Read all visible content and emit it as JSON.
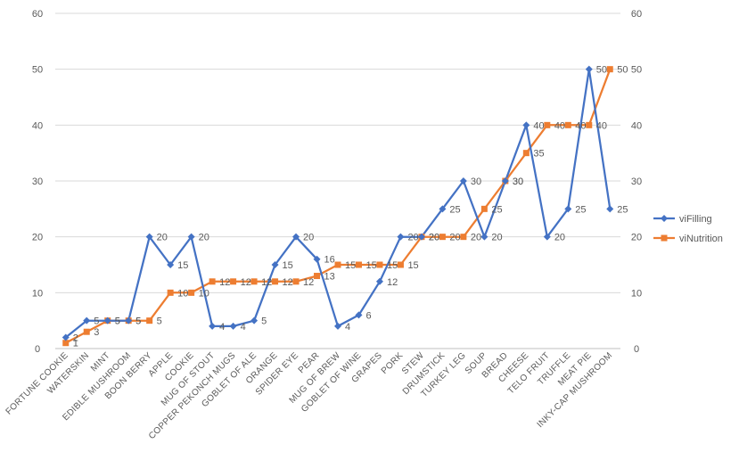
{
  "chart_data": {
    "type": "line",
    "categories": [
      "FORTUNE COOKIE",
      "WATERSKIN",
      "MINT",
      "EDIBLE MUSHROOM",
      "BOON BERRY",
      "APPLE",
      "COOKIE",
      "MUG OF STOUT",
      "COPPER PEKONCH MUGS",
      "GOBLET OF ALE",
      "ORANGE",
      "SPIDER EYE",
      "PEAR",
      "MUG OF BREW",
      "GOBLET OF WINE",
      "GRAPES",
      "PORK",
      "STEW",
      "DRUMSTICK",
      "TURKEY LEG",
      "SOUP",
      "BREAD",
      "CHEESE",
      "TELO FRUIT",
      "TRUFFLE",
      "MEAT PIE",
      "INKY-CAP MUSHROOM"
    ],
    "series": [
      {
        "name": "viFilling",
        "color": "#4472C4",
        "marker": "diamond",
        "values": [
          2,
          5,
          5,
          5,
          20,
          15,
          20,
          4,
          4,
          5,
          15,
          20,
          16,
          4,
          6,
          12,
          20,
          20,
          25,
          30,
          20,
          30,
          40,
          20,
          25,
          50,
          25
        ]
      },
      {
        "name": "viNutrition",
        "color": "#ED7D31",
        "marker": "square",
        "values": [
          1,
          3,
          5,
          5,
          5,
          10,
          10,
          12,
          12,
          12,
          12,
          12,
          13,
          15,
          15,
          15,
          15,
          20,
          20,
          20,
          25,
          30,
          35,
          40,
          40,
          40,
          50
        ]
      }
    ],
    "ylim": [
      0,
      60
    ],
    "y2lim": [
      0,
      60
    ],
    "yticks": [
      "0",
      "10",
      "20",
      "30",
      "40",
      "50",
      "60"
    ],
    "y2ticks": [
      "0",
      "10",
      "20",
      "30",
      "40",
      "50",
      "60"
    ],
    "grid": true,
    "legend": "right"
  }
}
